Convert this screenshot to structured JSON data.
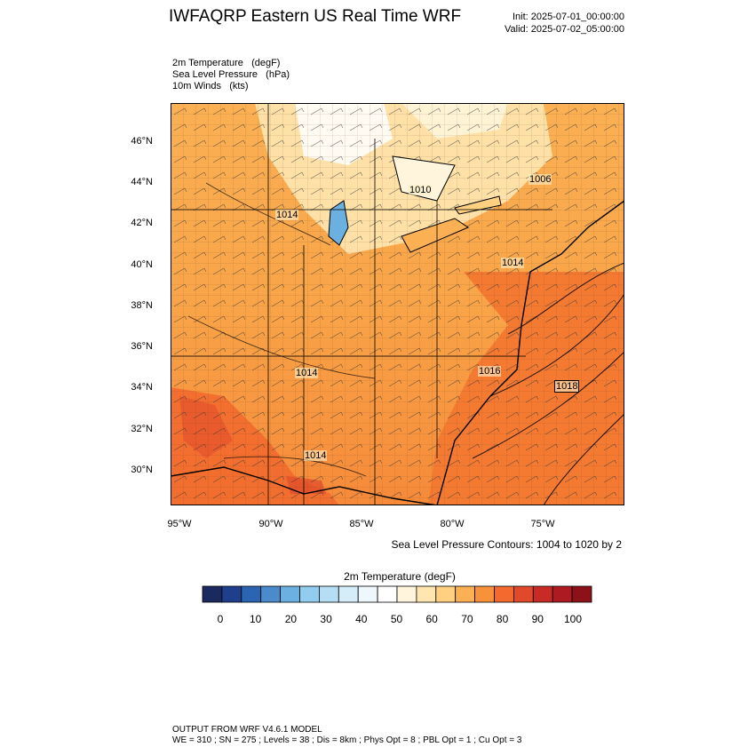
{
  "header": {
    "title": "IWFAQRP Eastern US Real Time WRF",
    "init": "Init: 2025-07-01_00:00:00",
    "valid": "Valid: 2025-07-02_05:00:00"
  },
  "fields": [
    {
      "name": "2m Temperature",
      "units": "(degF)"
    },
    {
      "name": "Sea Level Pressure",
      "units": "(hPa)"
    },
    {
      "name": "10m Winds",
      "units": "(kts)"
    }
  ],
  "map": {
    "lat_ticks": [
      "46°N",
      "44°N",
      "42°N",
      "40°N",
      "38°N",
      "36°N",
      "34°N",
      "32°N",
      "30°N"
    ],
    "lon_ticks": [
      "95°W",
      "90°W",
      "85°W",
      "80°W",
      "75°W"
    ],
    "slp_labels": [
      "1014",
      "1010",
      "1006",
      "1014",
      "1014",
      "1016",
      "1018",
      "1014"
    ],
    "contour_note": "Sea Level Pressure Contours: 1004 to 1020 by 2"
  },
  "colorbar": {
    "title": "2m Temperature  (degF)",
    "colors": [
      "#1b2a5e",
      "#1f3f8c",
      "#2c64b4",
      "#4a8bcc",
      "#6ab0e0",
      "#92cdef",
      "#b5def5",
      "#d4edf9",
      "#eef7fc",
      "#ffffff",
      "#fff5dc",
      "#ffe6b0",
      "#ffd080",
      "#fbb054",
      "#f7923b",
      "#f26a2d",
      "#e04a2b",
      "#c82a26",
      "#ae1a22",
      "#8c1119"
    ],
    "labels": [
      "0",
      "10",
      "20",
      "30",
      "40",
      "50",
      "60",
      "70",
      "80",
      "90",
      "100"
    ]
  },
  "footer": {
    "model": "OUTPUT FROM WRF V4.6.1 MODEL",
    "config": "WE = 310 ; SN = 275 ; Levels = 38 ; Dis = 8km ; Phys Opt = 8 ; PBL Opt = 1 ; Cu Opt = 3"
  }
}
